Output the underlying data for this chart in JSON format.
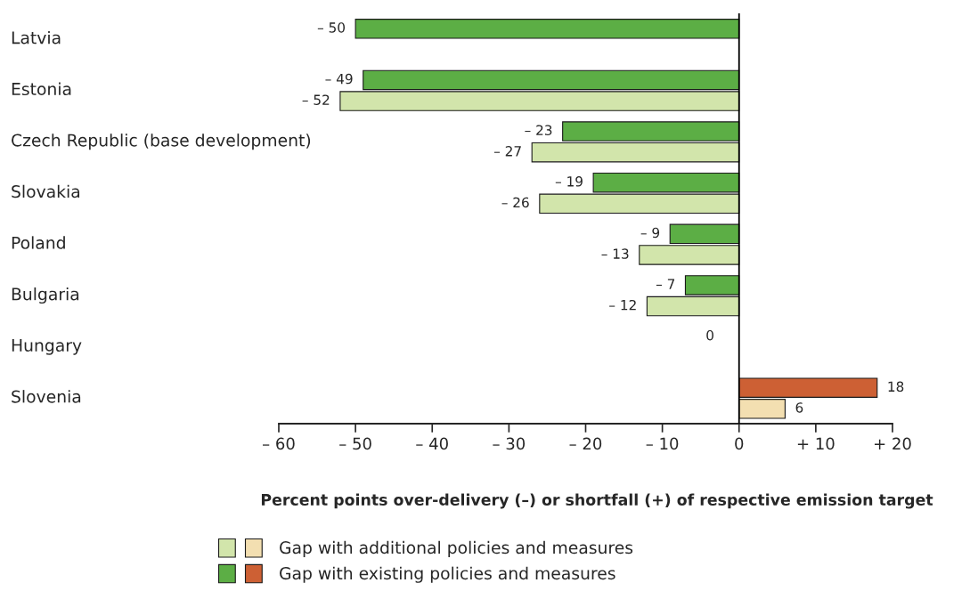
{
  "chart_data": {
    "type": "bar",
    "orientation": "horizontal",
    "xlabel": "Percent points over-delivery (–) or shortfall (+) of respective emission target",
    "categories": [
      "Latvia",
      "Estonia",
      "Czech Republic (base development)",
      "Slovakia",
      "Poland",
      "Bulgaria",
      "Hungary",
      "Slovenia"
    ],
    "series": [
      {
        "name": "Gap with existing policies and measures",
        "values": [
          -50,
          -49,
          -23,
          -19,
          -9,
          -7,
          0,
          18
        ],
        "colors": [
          "#5cae45",
          "#5cae45",
          "#5cae45",
          "#5cae45",
          "#5cae45",
          "#5cae45",
          "#5cae45",
          "#cd6034"
        ],
        "value_labels": [
          "– 50",
          "– 49",
          "– 23",
          "– 19",
          "– 9",
          "– 7",
          "0",
          "18"
        ]
      },
      {
        "name": "Gap with additional policies and measures",
        "values": [
          null,
          -52,
          -27,
          -26,
          -13,
          -12,
          null,
          6
        ],
        "colors": [
          "#d2e5ab",
          "#d2e5ab",
          "#d2e5ab",
          "#d2e5ab",
          "#d2e5ab",
          "#d2e5ab",
          "#d2e5ab",
          "#f3dfb1"
        ],
        "value_labels": [
          null,
          "– 52",
          "– 27",
          "– 26",
          "– 13",
          "– 12",
          null,
          "6"
        ]
      }
    ],
    "xlim": [
      -60,
      20
    ],
    "xticks": [
      {
        "value": -60,
        "label": "– 60"
      },
      {
        "value": -50,
        "label": "– 50"
      },
      {
        "value": -40,
        "label": "– 40"
      },
      {
        "value": -30,
        "label": "– 30"
      },
      {
        "value": -20,
        "label": "– 20"
      },
      {
        "value": -10,
        "label": "– 10"
      },
      0,
      {
        "value": 10,
        "label": "+ 10"
      },
      {
        "value": 20,
        "label": "+ 20"
      }
    ],
    "grid": false,
    "ref_lines": [
      {
        "axis": "x",
        "value": 0,
        "color": "#000000"
      }
    ],
    "legend": "bottom left"
  }
}
